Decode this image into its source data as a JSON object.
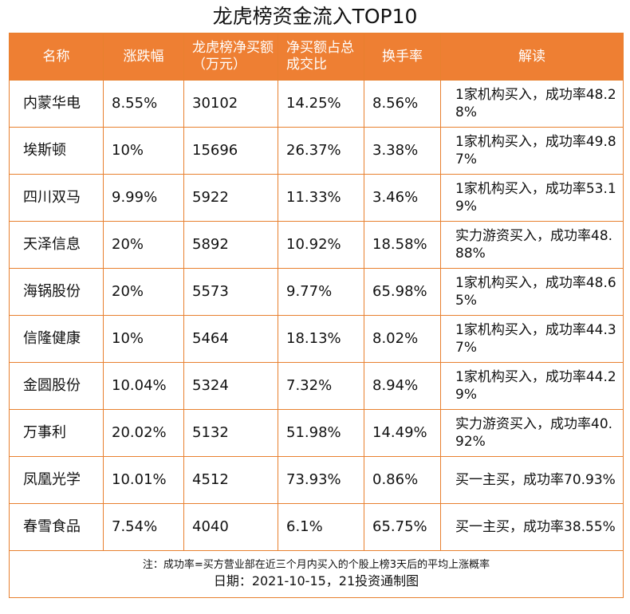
{
  "title": "龙虎榜资金流入TOP10",
  "columns": [
    "名称",
    "涨跌幅",
    "龙虎榜净买额（万元）",
    "净买额占总成交比",
    "换手率",
    "解读"
  ],
  "rows": [
    {
      "name": "内蒙华电",
      "change": "8.55%",
      "net_buy": "30102",
      "ratio": "14.25%",
      "turnover": "8.56%",
      "note": "1家机构买入，成功率48.28%"
    },
    {
      "name": "埃斯顿",
      "change": "10%",
      "net_buy": "15696",
      "ratio": "26.37%",
      "turnover": "3.38%",
      "note": "1家机构买入，成功率49.87%"
    },
    {
      "name": "四川双马",
      "change": "9.99%",
      "net_buy": "5922",
      "ratio": "11.33%",
      "turnover": "3.46%",
      "note": "1家机构买入，成功率53.19%"
    },
    {
      "name": "天泽信息",
      "change": "20%",
      "net_buy": "5892",
      "ratio": "10.92%",
      "turnover": "18.58%",
      "note": "实力游资买入，成功率48.88%"
    },
    {
      "name": "海锅股份",
      "change": "20%",
      "net_buy": "5573",
      "ratio": "9.77%",
      "turnover": "65.98%",
      "note": "1家机构买入，成功率48.65%"
    },
    {
      "name": "信隆健康",
      "change": "10%",
      "net_buy": "5464",
      "ratio": "18.13%",
      "turnover": "8.02%",
      "note": "1家机构买入，成功率44.37%"
    },
    {
      "name": "金圆股份",
      "change": "10.04%",
      "net_buy": "5324",
      "ratio": "7.32%",
      "turnover": "8.94%",
      "note": "1家机构买入，成功率44.29%"
    },
    {
      "name": "万事利",
      "change": "20.02%",
      "net_buy": "5132",
      "ratio": "51.98%",
      "turnover": "14.49%",
      "note": "实力游资买入，成功率40.92%"
    },
    {
      "name": "凤凰光学",
      "change": "10.01%",
      "net_buy": "4512",
      "ratio": "73.93%",
      "turnover": "0.86%",
      "note": "买一主买，成功率70.93%"
    },
    {
      "name": "春雪食品",
      "change": "7.54%",
      "net_buy": "4040",
      "ratio": "6.1%",
      "turnover": "65.75%",
      "note": "买一主买，成功率38.55%"
    }
  ],
  "footer": {
    "note": "注：成功率=买方营业部在近三个月内买入的个股上榜3天后的平均上涨概率",
    "date_source": "日期：2021-10-15，21投资通制图"
  },
  "colors": {
    "header_bg": "#ee7f33",
    "border": "#e8802f"
  }
}
